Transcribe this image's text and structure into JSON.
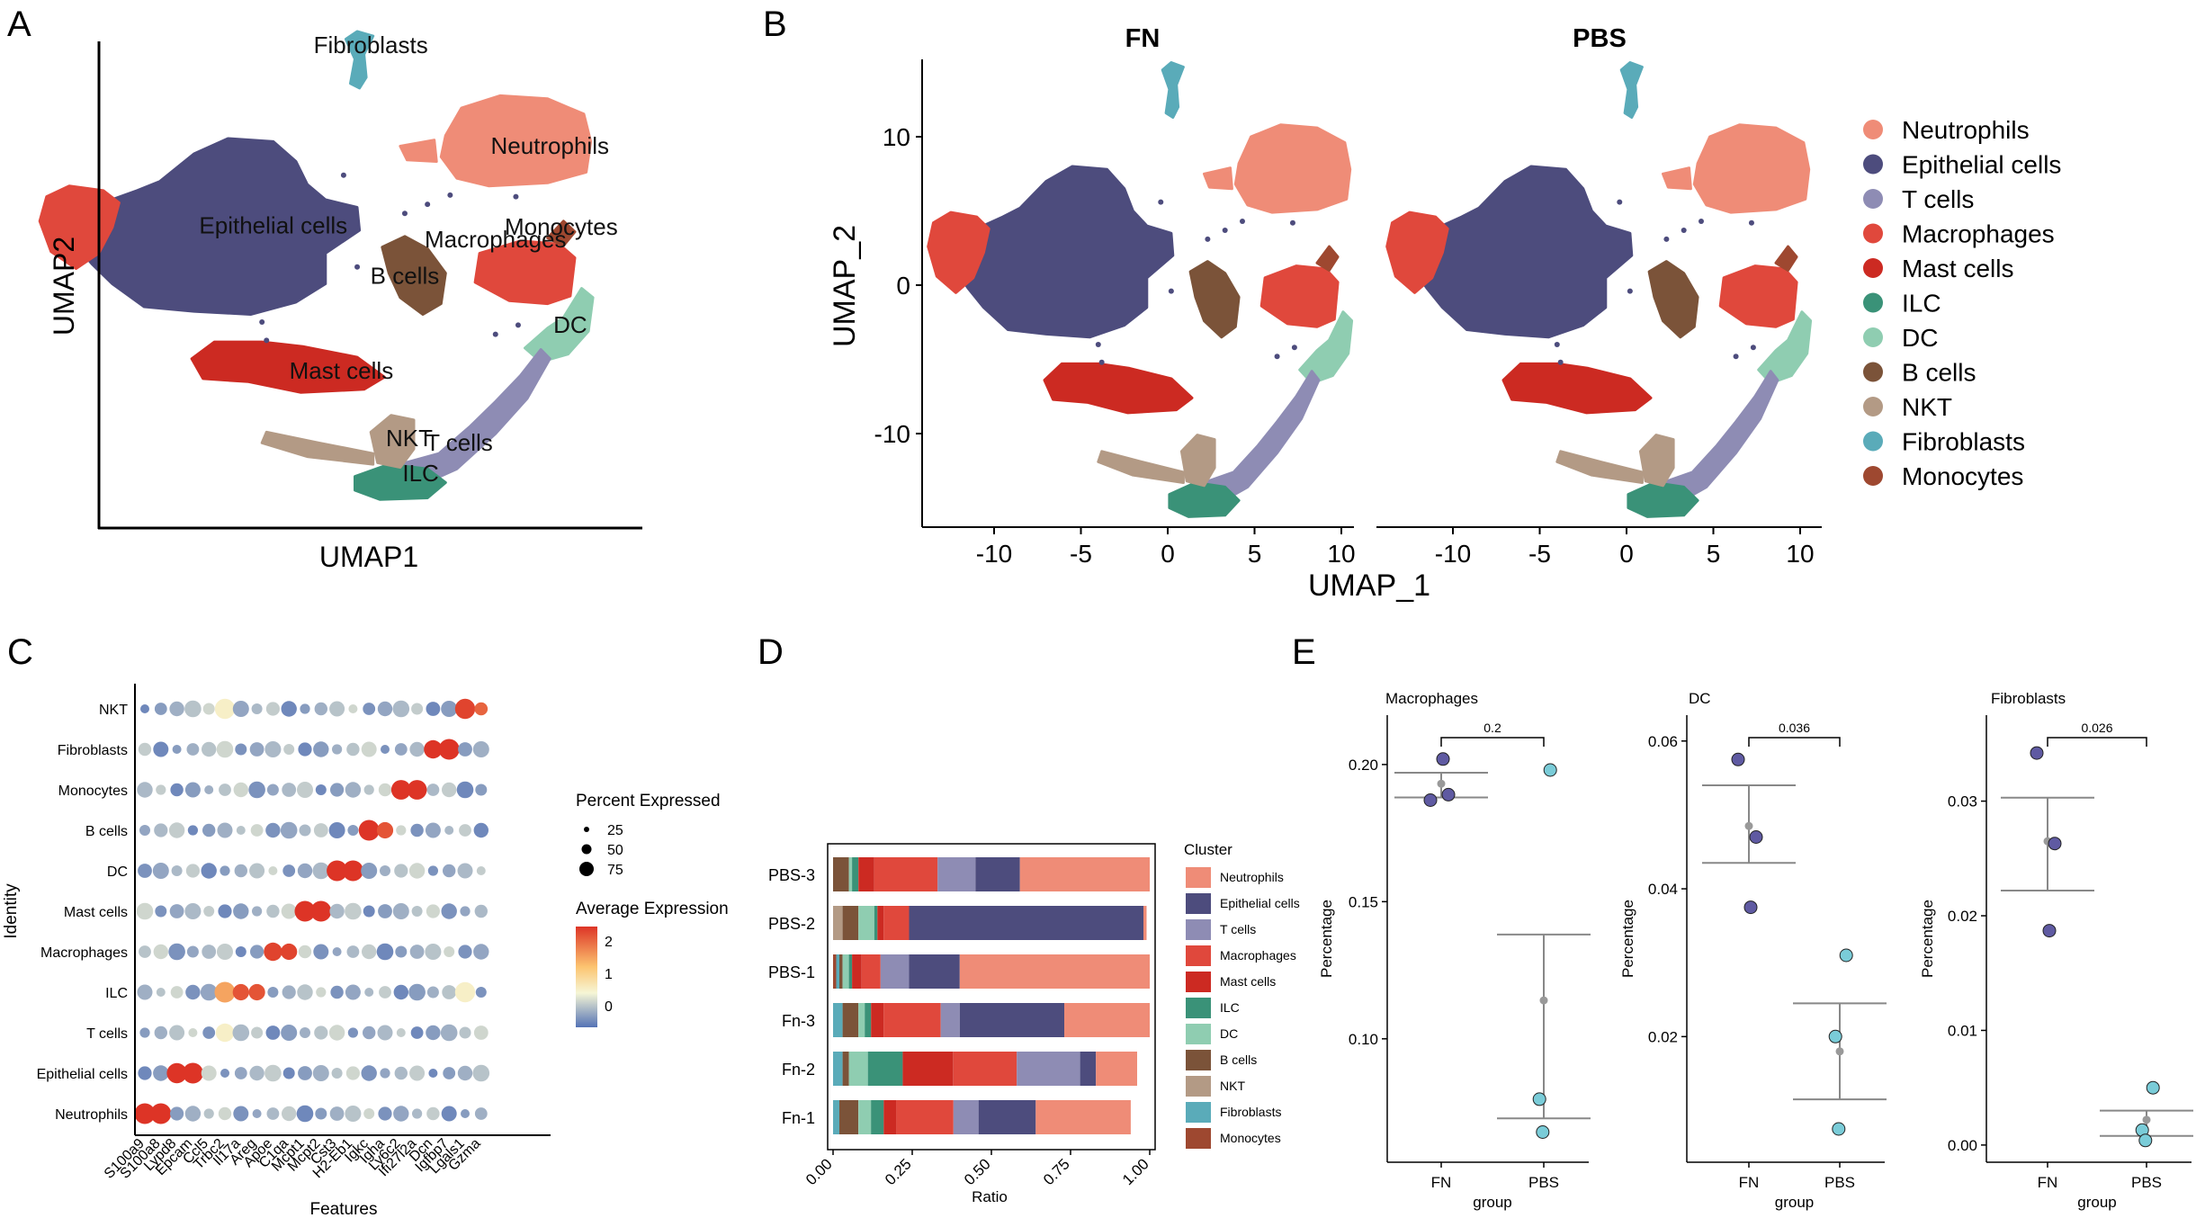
{
  "panel_letters": {
    "A": "A",
    "B": "B",
    "C": "C",
    "D": "D",
    "E": "E"
  },
  "colors": {
    "Neutrophils": "#EF8C77",
    "Epithelial cells": "#4D4C7D",
    "T cells": "#8E8CB4",
    "Macrophages": "#E0483C",
    "Mast cells": "#CC2A22",
    "ILC": "#3A9278",
    "DC": "#8FCDB1",
    "B cells": "#7B5339",
    "NKT": "#B39A85",
    "Fibroblasts": "#5AABB9",
    "Monocytes": "#9E4830"
  },
  "chart_data": [
    {
      "id": "A",
      "type": "scatter",
      "title": "",
      "xlabel": "UMAP1",
      "ylabel": "UMAP2",
      "cluster_labels": [
        {
          "name": "Fibroblasts",
          "text": "Fibroblasts",
          "x": 0.8,
          "y": 14
        },
        {
          "name": "Neutrophils",
          "text": "Neutrophils",
          "x": 8.7,
          "y": 7.4
        },
        {
          "name": "Epithelial cells",
          "text": "Epithelial cells",
          "x": -3.5,
          "y": 2.2
        },
        {
          "name": "Monocytes",
          "text": "Monocytes",
          "x": 9.2,
          "y": 2.1
        },
        {
          "name": "Macrophages",
          "text": "Macrophages",
          "x": 6.3,
          "y": 1.3
        },
        {
          "name": "B cells",
          "text": "B cells",
          "x": 2.3,
          "y": -1.1
        },
        {
          "name": "DC",
          "text": "DC",
          "x": 9.6,
          "y": -4.3
        },
        {
          "name": "Mast cells",
          "text": "Mast cells",
          "x": -0.5,
          "y": -7.3
        },
        {
          "name": "NKT",
          "text": "NKT",
          "x": 2.5,
          "y": -11.7
        },
        {
          "name": "T cells",
          "text": "T cells",
          "x": 4.7,
          "y": -12.0
        },
        {
          "name": "ILC",
          "text": "ILC",
          "x": 3.0,
          "y": -14.0
        }
      ]
    },
    {
      "id": "B",
      "type": "scatter",
      "panels": [
        "FN",
        "PBS"
      ],
      "xlabel": "UMAP_1",
      "ylabel": "UMAP_2",
      "xticks": [
        -10,
        -5,
        0,
        5,
        10
      ],
      "yticks": [
        10,
        0,
        -10
      ],
      "xlim": [
        -14,
        10.8
      ],
      "ylim": [
        -16.5,
        15.5
      ],
      "legend": [
        "Neutrophils",
        "Epithelial cells",
        "T cells",
        "Macrophages",
        "Mast cells",
        "ILC",
        "DC",
        "B cells",
        "NKT",
        "Fibroblasts",
        "Monocytes"
      ]
    },
    {
      "id": "C",
      "type": "dotplot",
      "xlabel": "Features",
      "ylabel": "Identity",
      "features": [
        "S100a9",
        "S100a8",
        "Lypd8",
        "Epcam",
        "Ccl5",
        "Trbc2",
        "Il17a",
        "Areg",
        "Apoe",
        "C1qa",
        "Mcpt1",
        "Mcpt2",
        "Cst3",
        "H2-Eb1",
        "Igkc",
        "Igha",
        "Ly6c2",
        "Ifi27l2a",
        "Dcn",
        "Igfbp7",
        "Lgals1",
        "Gzma"
      ],
      "identities": [
        "NKT",
        "Fibroblasts",
        "Monocytes",
        "B cells",
        "DC",
        "Mast cells",
        "Macrophages",
        "ILC",
        "T cells",
        "Epithelial cells",
        "Neutrophils"
      ],
      "size_legend_title": "Percent Expressed",
      "size_legend_values": [
        25,
        50,
        75
      ],
      "color_legend_title": "Average Expression",
      "color_legend_ticks": [
        2,
        1,
        0
      ],
      "highlights": [
        {
          "identity": "NKT",
          "feature": "Lgals1",
          "expr": 2.4,
          "pct": 75
        },
        {
          "identity": "NKT",
          "feature": "Gzma",
          "expr": 2.2,
          "pct": 25
        },
        {
          "identity": "NKT",
          "feature": "Trbc2",
          "expr": 1.0,
          "pct": 75
        },
        {
          "identity": "Fibroblasts",
          "feature": "Dcn",
          "expr": 2.5,
          "pct": 60
        },
        {
          "identity": "Fibroblasts",
          "feature": "Igfbp7",
          "expr": 2.5,
          "pct": 80
        },
        {
          "identity": "Monocytes",
          "feature": "Ly6c2",
          "expr": 2.5,
          "pct": 70
        },
        {
          "identity": "Monocytes",
          "feature": "Ifi27l2a",
          "expr": 2.5,
          "pct": 70
        },
        {
          "identity": "B cells",
          "feature": "Igkc",
          "expr": 2.5,
          "pct": 80
        },
        {
          "identity": "B cells",
          "feature": "Igha",
          "expr": 2.3,
          "pct": 45
        },
        {
          "identity": "DC",
          "feature": "Cst3",
          "expr": 2.5,
          "pct": 80
        },
        {
          "identity": "DC",
          "feature": "H2-Eb1",
          "expr": 2.5,
          "pct": 80
        },
        {
          "identity": "Mast cells",
          "feature": "Mcpt1",
          "expr": 2.5,
          "pct": 80
        },
        {
          "identity": "Mast cells",
          "feature": "Mcpt2",
          "expr": 2.5,
          "pct": 80
        },
        {
          "identity": "Macrophages",
          "feature": "Apoe",
          "expr": 2.4,
          "pct": 60
        },
        {
          "identity": "Macrophages",
          "feature": "C1qa",
          "expr": 2.4,
          "pct": 45
        },
        {
          "identity": "ILC",
          "feature": "Trbc2",
          "expr": 1.8,
          "pct": 80
        },
        {
          "identity": "ILC",
          "feature": "Il17a",
          "expr": 2.3,
          "pct": 45
        },
        {
          "identity": "ILC",
          "feature": "Areg",
          "expr": 2.3,
          "pct": 45
        },
        {
          "identity": "ILC",
          "feature": "Lgals1",
          "expr": 1.0,
          "pct": 75
        },
        {
          "identity": "T cells",
          "feature": "Trbc2",
          "expr": 1.0,
          "pct": 60
        },
        {
          "identity": "Epithelial cells",
          "feature": "Lypd8",
          "expr": 2.5,
          "pct": 75
        },
        {
          "identity": "Epithelial cells",
          "feature": "Epcam",
          "expr": 2.5,
          "pct": 80
        },
        {
          "identity": "Neutrophils",
          "feature": "S100a9",
          "expr": 2.5,
          "pct": 80
        },
        {
          "identity": "Neutrophils",
          "feature": "S100a8",
          "expr": 2.5,
          "pct": 80
        }
      ]
    },
    {
      "id": "D",
      "type": "bar",
      "orientation": "horizontal",
      "stacked": true,
      "xlabel": "Ratio",
      "ylabel": "",
      "xticks": [
        "0.00",
        "0.25",
        "0.50",
        "0.75",
        "1.00"
      ],
      "legend_title": "Cluster",
      "categories": [
        "PBS-3",
        "PBS-2",
        "PBS-1",
        "Fn-3",
        "Fn-2",
        "Fn-1"
      ],
      "stack_order": [
        "Monocytes",
        "Fibroblasts",
        "NKT",
        "B cells",
        "DC",
        "ILC",
        "Mast cells",
        "Macrophages",
        "T cells",
        "Epithelial cells",
        "Neutrophils"
      ],
      "series": [
        {
          "name": "Monocytes",
          "values": [
            0.0,
            0.0,
            0.01,
            0.0,
            0.0,
            0.0
          ]
        },
        {
          "name": "Fibroblasts",
          "values": [
            0.0,
            0.0,
            0.01,
            0.03,
            0.03,
            0.02
          ]
        },
        {
          "name": "NKT",
          "values": [
            0.0,
            0.03,
            0.0,
            0.0,
            0.0,
            0.0
          ]
        },
        {
          "name": "B cells",
          "values": [
            0.05,
            0.05,
            0.01,
            0.05,
            0.02,
            0.06
          ]
        },
        {
          "name": "DC",
          "values": [
            0.01,
            0.05,
            0.02,
            0.02,
            0.06,
            0.04
          ]
        },
        {
          "name": "ILC",
          "values": [
            0.02,
            0.01,
            0.01,
            0.02,
            0.11,
            0.04
          ]
        },
        {
          "name": "Mast cells",
          "values": [
            0.05,
            0.02,
            0.03,
            0.04,
            0.16,
            0.04
          ]
        },
        {
          "name": "Macrophages",
          "values": [
            0.2,
            0.08,
            0.06,
            0.18,
            0.2,
            0.18
          ]
        },
        {
          "name": "T cells",
          "values": [
            0.12,
            0.0,
            0.09,
            0.06,
            0.2,
            0.08
          ]
        },
        {
          "name": "Epithelial cells",
          "values": [
            0.14,
            0.74,
            0.16,
            0.33,
            0.05,
            0.18
          ]
        },
        {
          "name": "Neutrophils",
          "values": [
            0.41,
            0.01,
            0.6,
            0.27,
            0.13,
            0.3
          ]
        }
      ]
    },
    {
      "id": "E",
      "type": "scatter",
      "subpanels": [
        {
          "title": "Macrophages",
          "ylabel": "Percentage",
          "xlabel": "group",
          "groups": [
            "FN",
            "PBS"
          ],
          "yticks": [
            0.1,
            0.15,
            0.2
          ],
          "ytick_labels": [
            "0.10",
            "0.15",
            "0.20"
          ],
          "ylim": [
            0.055,
            0.218
          ],
          "FN": [
            0.187,
            0.189,
            0.202
          ],
          "PBS": [
            0.198,
            0.078,
            0.066
          ],
          "FN_stats": {
            "mean": 0.193,
            "lo": 0.188,
            "hi": 0.197
          },
          "PBS_stats": {
            "mean": 0.114,
            "lo": 0.071,
            "hi": 0.138
          },
          "pvalue": "0.2"
        },
        {
          "title": "DC",
          "ylabel": "Percentage",
          "xlabel": "group",
          "groups": [
            "FN",
            "PBS"
          ],
          "yticks": [
            0.02,
            0.04,
            0.06
          ],
          "ytick_labels": [
            "0.02",
            "0.04",
            "0.06"
          ],
          "ylim": [
            0.003,
            0.0635
          ],
          "FN": [
            0.0575,
            0.047,
            0.0375
          ],
          "PBS": [
            0.031,
            0.02,
            0.0075
          ],
          "FN_stats": {
            "mean": 0.0485,
            "lo": 0.0435,
            "hi": 0.054
          },
          "PBS_stats": {
            "mean": 0.018,
            "lo": 0.0115,
            "hi": 0.0245
          },
          "pvalue": "0.036"
        },
        {
          "title": "Fibroblasts",
          "ylabel": "Percentage",
          "xlabel": "group",
          "groups": [
            "FN",
            "PBS"
          ],
          "yticks": [
            0.0,
            0.01,
            0.02,
            0.03
          ],
          "ytick_labels": [
            "0.00",
            "0.01",
            "0.02",
            "0.03"
          ],
          "ylim": [
            -0.0015,
            0.0375
          ],
          "FN": [
            0.0342,
            0.0263,
            0.0187
          ],
          "PBS": [
            0.005,
            0.0013,
            0.0004
          ],
          "FN_stats": {
            "mean": 0.0265,
            "lo": 0.0222,
            "hi": 0.0303
          },
          "PBS_stats": {
            "mean": 0.0022,
            "lo": 0.0008,
            "hi": 0.003
          },
          "pvalue": "0.026"
        }
      ]
    }
  ]
}
